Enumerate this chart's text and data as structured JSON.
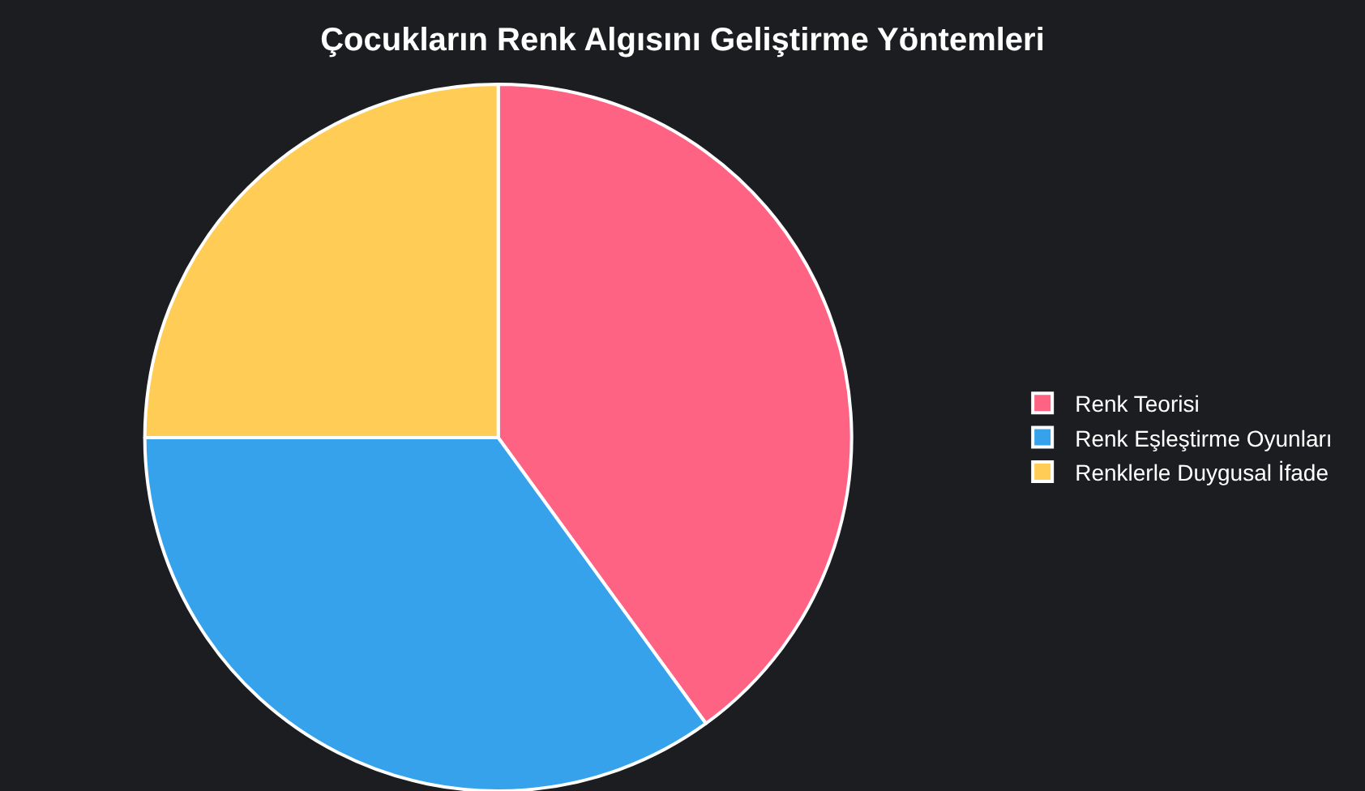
{
  "chart_data": {
    "type": "pie",
    "title": "Çocukların Renk Algısını Geliştirme Yöntemleri",
    "categories": [
      "Renk Teorisi",
      "Renk Eşleştirme Oyunları",
      "Renklerle Duygusal İfade"
    ],
    "values": [
      40,
      35,
      25
    ],
    "colors": [
      "#ff6384",
      "#36a2eb",
      "#ffcd56"
    ],
    "legend": "right"
  }
}
